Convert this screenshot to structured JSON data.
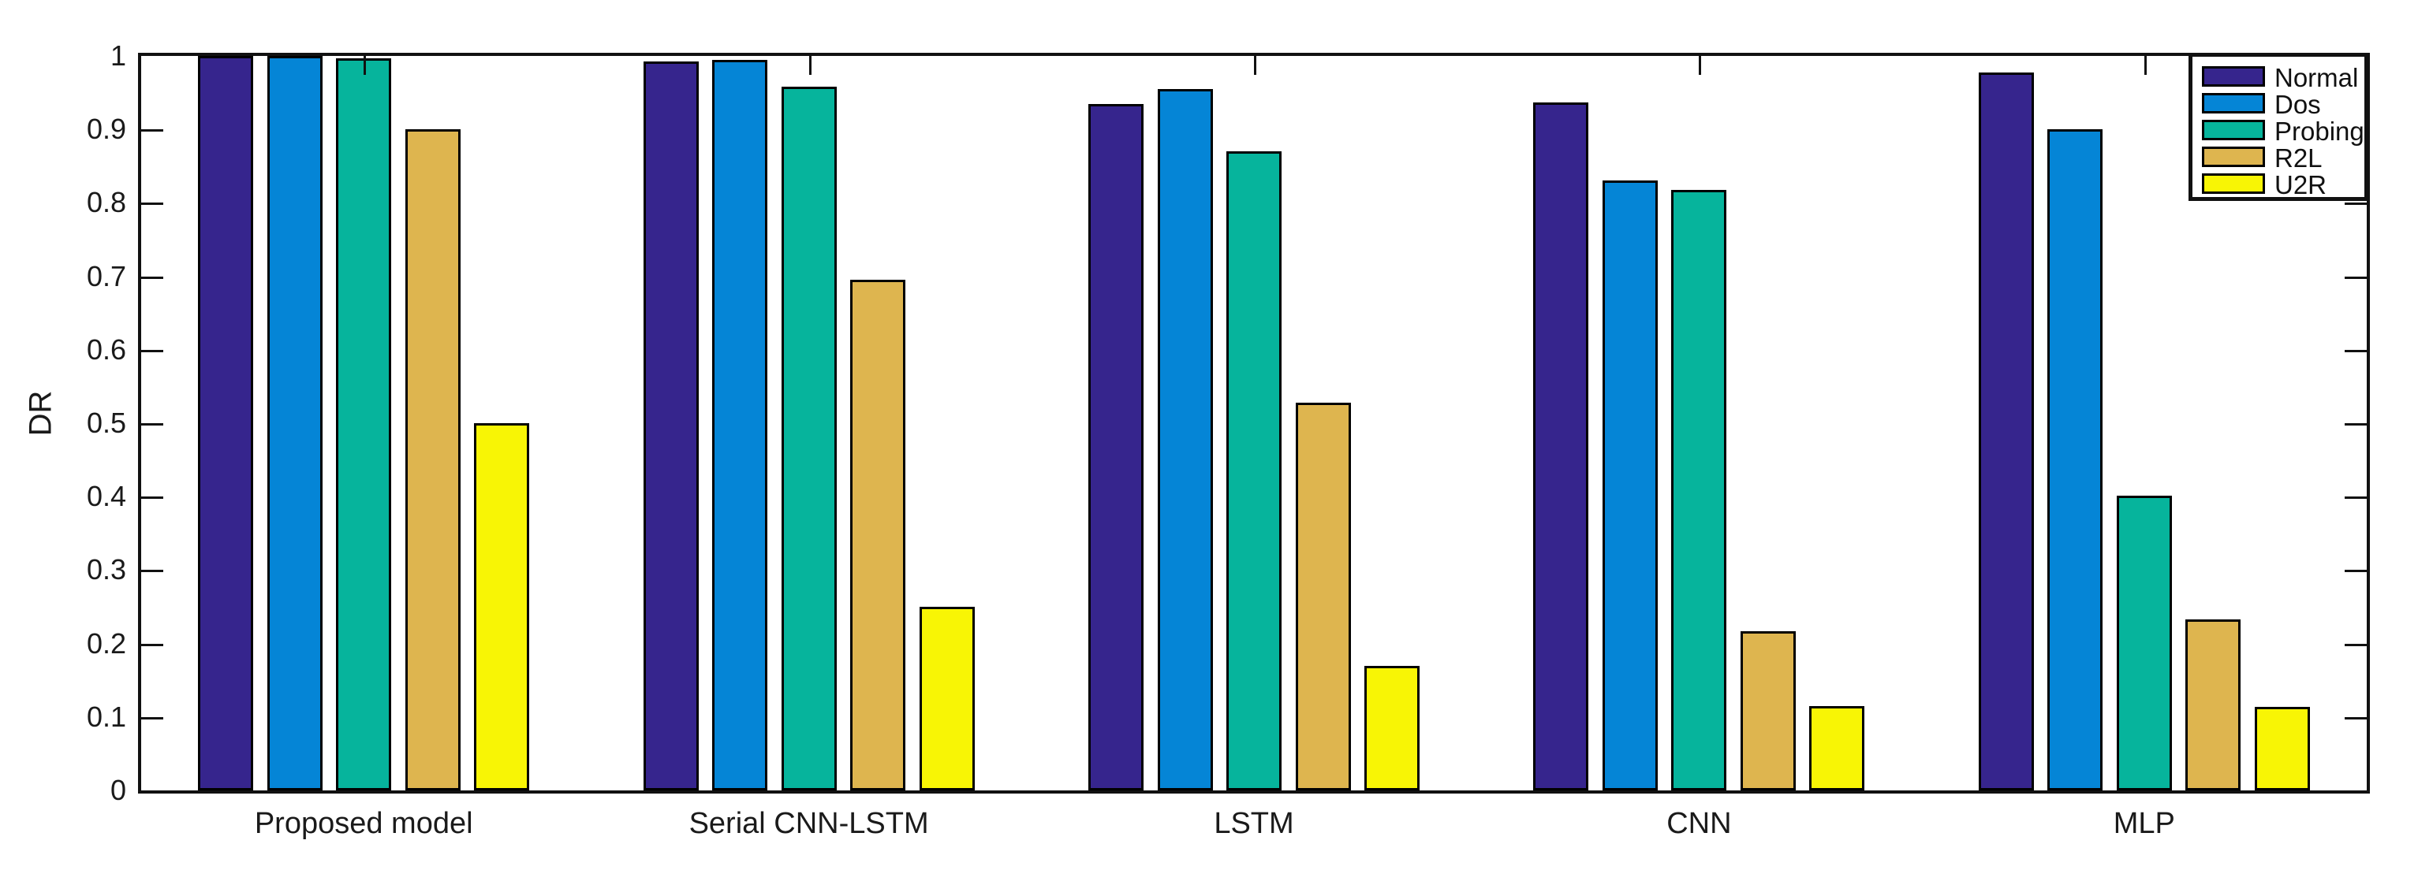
{
  "figure": {
    "type": "grouped-bar-chart"
  },
  "chart_data": {
    "type": "bar",
    "title": "",
    "xlabel": "",
    "ylabel": "DR",
    "ylim": [
      0,
      1
    ],
    "grid": false,
    "legend_position": "top-right",
    "ytick_labels": [
      "0",
      "0.1",
      "0.2",
      "0.3",
      "0.4",
      "0.5",
      "0.6",
      "0.7",
      "0.8",
      "0.9",
      "1"
    ],
    "ytick_values": [
      0,
      0.1,
      0.2,
      0.3,
      0.4,
      0.5,
      0.6,
      0.7,
      0.8,
      0.9,
      1
    ],
    "categories": [
      "Proposed model",
      "Serial CNN-LSTM",
      "LSTM",
      "CNN",
      "MLP"
    ],
    "series": [
      {
        "name": "Normal",
        "color": "#36258D",
        "values": [
          1.0,
          0.993,
          0.935,
          0.937,
          0.977
        ]
      },
      {
        "name": "Dos",
        "color": "#0585D6",
        "values": [
          1.0,
          0.995,
          0.955,
          0.831,
          0.9
        ]
      },
      {
        "name": "Probing",
        "color": "#06B49C",
        "values": [
          0.997,
          0.958,
          0.87,
          0.818,
          0.401
        ]
      },
      {
        "name": "R2L",
        "color": "#DEB54F",
        "values": [
          0.9,
          0.695,
          0.528,
          0.217,
          0.233
        ]
      },
      {
        "name": "U2R",
        "color": "#F8F505",
        "values": [
          0.5,
          0.25,
          0.17,
          0.115,
          0.114
        ]
      }
    ]
  }
}
